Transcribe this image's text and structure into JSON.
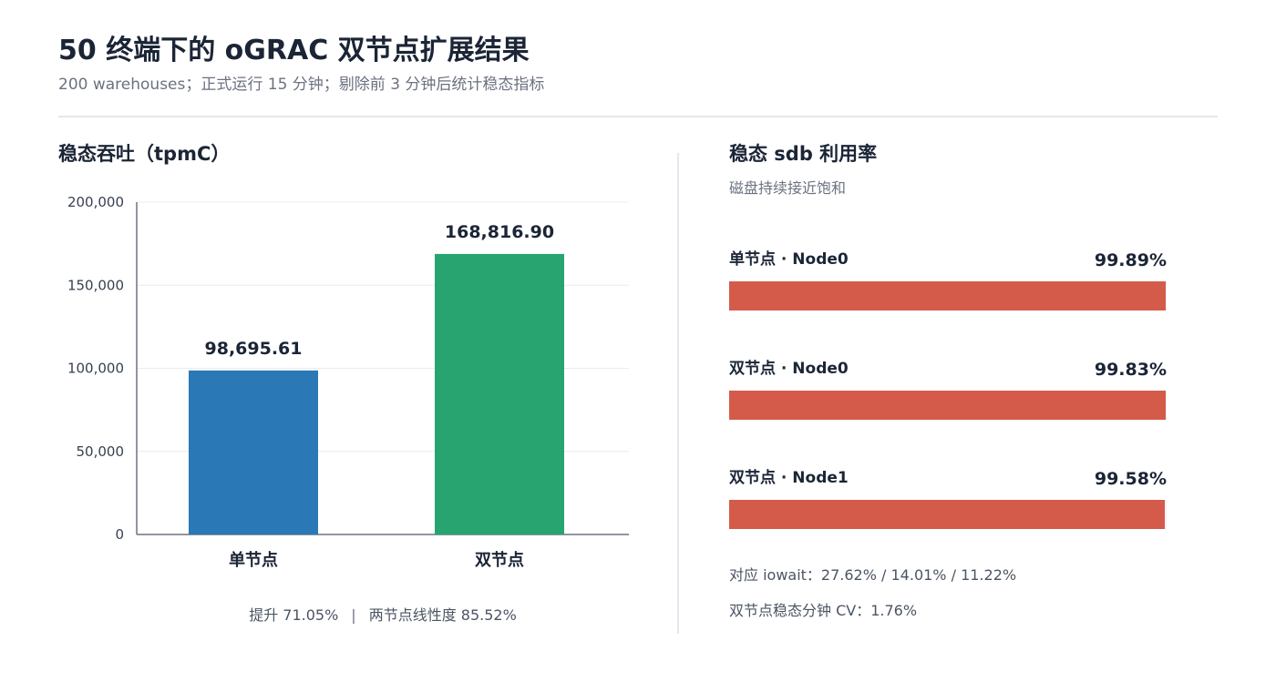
{
  "header": {
    "title": "50 终端下的 oGRAC 双节点扩展结果",
    "subtitle": "200 warehouses；正式运行 15 分钟；剔除前 3 分钟后统计稳态指标"
  },
  "left_panel": {
    "title": "稳态吞吐（tpmC）",
    "note_gain": "提升 71.05%",
    "note_sep": "|",
    "note_linearity": "两节点线性度 85.52%"
  },
  "right_panel": {
    "title": "稳态 sdb 利用率",
    "subtitle": "磁盘持续接近饱和",
    "rows": [
      {
        "label": "单节点 · Node0",
        "value_text": "99.89%",
        "value": 99.89
      },
      {
        "label": "双节点 · Node0",
        "value_text": "99.83%",
        "value": 99.83
      },
      {
        "label": "双节点 · Node1",
        "value_text": "99.58%",
        "value": 99.58
      }
    ],
    "note_iowait": "对应 iowait：27.62% / 14.01% / 11.22%",
    "note_cv": "双节点稳态分钟 CV：1.76%"
  },
  "colors": {
    "single": "#2a78b5",
    "double": "#27a46f",
    "util": "#d45b4a"
  },
  "chart_data": [
    {
      "type": "bar",
      "title": "稳态吞吐（tpmC）",
      "categories": [
        "单节点",
        "双节点"
      ],
      "values": [
        98695.61,
        168816.9
      ],
      "data_labels": [
        "98,695.61",
        "168,816.90"
      ],
      "colors": [
        "#2a78b5",
        "#27a46f"
      ],
      "ylim": [
        0,
        200000
      ],
      "yticks": [
        0,
        50000,
        100000,
        150000,
        200000
      ],
      "ytick_labels": [
        "0",
        "50,000",
        "100,000",
        "150,000",
        "200,000"
      ],
      "xlabel": "",
      "ylabel": "",
      "grid": true
    },
    {
      "type": "bar",
      "orientation": "horizontal",
      "title": "稳态 sdb 利用率",
      "categories": [
        "单节点 · Node0",
        "双节点 · Node0",
        "双节点 · Node1"
      ],
      "values": [
        99.89,
        99.83,
        99.58
      ],
      "data_labels": [
        "99.89%",
        "99.83%",
        "99.58%"
      ],
      "xlim": [
        0,
        100
      ]
    }
  ]
}
